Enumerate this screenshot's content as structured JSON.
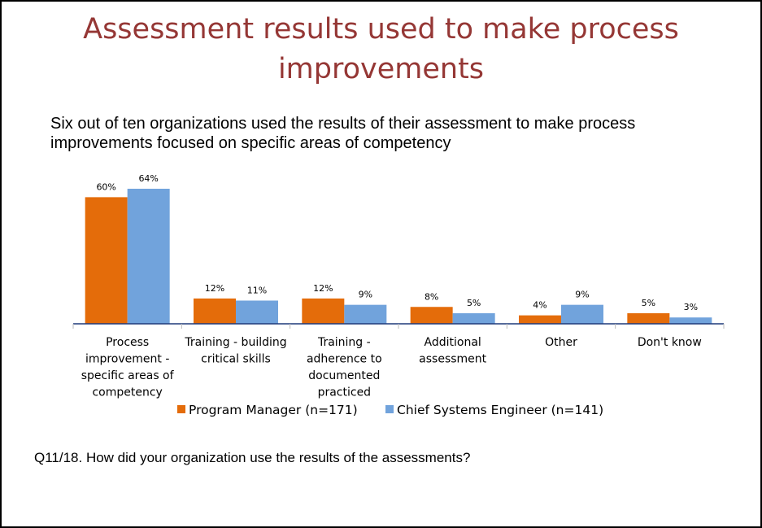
{
  "title": "Assessment results used to make process improvements",
  "subtitle": "Six out of ten organizations used the results of their assessment to make process improvements focused on specific areas of competency",
  "footer": "Q11/18.  How did your organization use the results of the assessments?",
  "chart_data": {
    "type": "bar",
    "categories": [
      [
        "Process",
        "improvement -",
        "specific areas of",
        "competency"
      ],
      [
        "Training - building",
        "critical skills"
      ],
      [
        "Training -",
        "adherence to",
        "documented",
        "practiced"
      ],
      [
        "Additional",
        "assessment"
      ],
      [
        "Other"
      ],
      [
        "Don't know"
      ]
    ],
    "series": [
      {
        "name": "Program Manager (n=171)",
        "color": "#E46C0A",
        "values": [
          60,
          12,
          12,
          8,
          4,
          5
        ],
        "labels": [
          "60%",
          "12%",
          "12%",
          "8%",
          "4%",
          "5%"
        ]
      },
      {
        "name": "Chief Systems Engineer (n=141)",
        "color": "#71A3DC",
        "values": [
          64,
          11,
          9,
          5,
          9,
          3
        ],
        "labels": [
          "64%",
          "11%",
          "9%",
          "5%",
          "9%",
          "3%"
        ]
      }
    ],
    "unit": "%",
    "ylim": [
      0,
      64
    ],
    "grid": false,
    "legend": "bottom",
    "axis_color": "#1F3A7A"
  }
}
